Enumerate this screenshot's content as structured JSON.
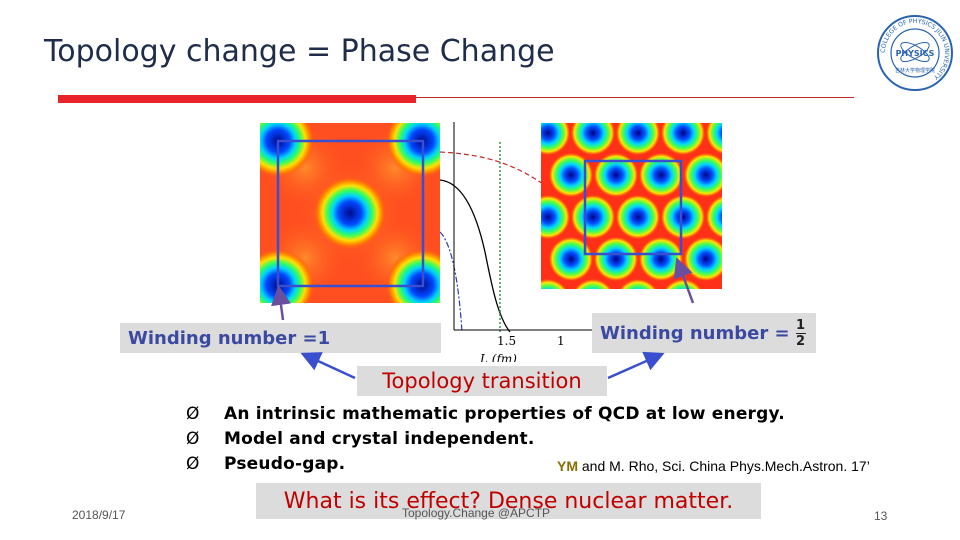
{
  "slide": {
    "title": "Topology change = Phase Change",
    "logo_text_top": "COLLEGE OF PHYSICS JILIN UNIVERSITY",
    "logo_center": "PHYSICS",
    "logo_bottom": "吉林大学物理学院",
    "plot_tick_1": "1.5",
    "plot_tick_2": "1",
    "plot_xlabel": "L (fm)",
    "winding_left": "Winding number =1",
    "winding_right_label": "Winding number =",
    "winding_right_num": "1",
    "winding_right_den": "2",
    "topology_label": "Topology transition",
    "bullets": [
      "An intrinsic mathematic properties of QCD at low energy.",
      "Model and crystal independent.",
      "Pseudo-gap."
    ],
    "bullet_marker": "Ø",
    "citation_author": "YM",
    "citation_rest": " and M. Rho, Sci. China Phys.Mech.Astron. 17’",
    "question": "What is its effect? Dense nuclear matter.",
    "footer_date": "2018/9/17",
    "footer_center": "Topology.Change @APCTP",
    "footer_page": "13"
  },
  "colors": {
    "title": "#1f2d4a",
    "accent_red": "#e8242a",
    "winding_text": "#3b4aa0",
    "transition_text": "#c00000",
    "arrow": "#6a4fa0"
  }
}
